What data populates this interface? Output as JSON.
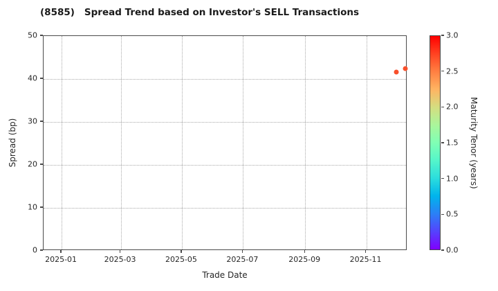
{
  "figure": {
    "title_code": "(8585)",
    "title_text": "Spread Trend based on Investor's SELL Transactions"
  },
  "colors": {
    "background": "#ffffff",
    "text": "#262626",
    "spine": "#4a4a4a",
    "grid": "#a8a8a8",
    "point": "#f8502c"
  },
  "chart_data": {
    "type": "scatter",
    "title": "(8585)  Spread Trend based on Investor's SELL Transactions",
    "xlabel": "Trade Date",
    "ylabel": "Spread (bp)",
    "xlim": [
      "2024-12-14",
      "2025-12-12"
    ],
    "ylim": [
      0,
      50
    ],
    "y_ticks": [
      0,
      10,
      20,
      30,
      40,
      50
    ],
    "x_ticks": [
      {
        "label": "2025-01",
        "date": "2025-01-01"
      },
      {
        "label": "2025-03",
        "date": "2025-03-01"
      },
      {
        "label": "2025-05",
        "date": "2025-05-01"
      },
      {
        "label": "2025-07",
        "date": "2025-07-01"
      },
      {
        "label": "2025-09",
        "date": "2025-09-01"
      },
      {
        "label": "2025-11",
        "date": "2025-11-01"
      }
    ],
    "grid": {
      "style": "dotted",
      "on": true
    },
    "points": [
      {
        "trade_date": "2025-12-01",
        "spread_bp": 41.6,
        "maturity_tenor_years": 2.7,
        "color": "#f8502c"
      },
      {
        "trade_date": "2025-12-10",
        "spread_bp": 42.5,
        "maturity_tenor_years": 2.7,
        "color": "#f8502c"
      }
    ],
    "colorbar": {
      "label": "Maturity Tenor (years)",
      "min": 0.0,
      "max": 3.0,
      "ticks": [
        "0.0",
        "0.5",
        "1.0",
        "1.5",
        "2.0",
        "2.5",
        "3.0"
      ],
      "colormap": "rainbow",
      "gradient_stops": [
        {
          "value": 0.0,
          "color": "#8000ff"
        },
        {
          "value": 0.25,
          "color": "#5542fd"
        },
        {
          "value": 0.5,
          "color": "#2b80f6"
        },
        {
          "value": 0.75,
          "color": "#00b4ec"
        },
        {
          "value": 1.0,
          "color": "#2bdddd"
        },
        {
          "value": 1.25,
          "color": "#55f6ca"
        },
        {
          "value": 1.5,
          "color": "#80ffb4"
        },
        {
          "value": 1.75,
          "color": "#aaf69b"
        },
        {
          "value": 2.0,
          "color": "#d5dd80"
        },
        {
          "value": 2.25,
          "color": "#ffb462"
        },
        {
          "value": 2.5,
          "color": "#ff8042"
        },
        {
          "value": 2.75,
          "color": "#ff4221"
        },
        {
          "value": 3.0,
          "color": "#ff0000"
        }
      ]
    }
  }
}
